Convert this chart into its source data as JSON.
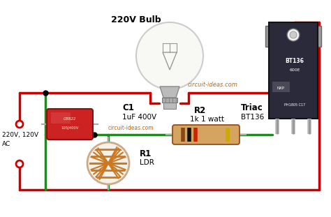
{
  "bg_color": "#ffffff",
  "wire_red": "#cc0000",
  "wire_green": "#228822",
  "label_bulb": "220V Bulb",
  "label_c1": "C1",
  "label_c1_val": "1uF 400V",
  "label_c1_brand": "circuit-ideas.com",
  "label_r2": "R2",
  "label_r2_val": "1k 1 watt",
  "label_r1": "R1",
  "label_r1_val": "LDR",
  "label_triac": "Triac",
  "label_triac_val": "BT136",
  "label_ac": "220V, 120V\nAC",
  "label_website": "circuit-ideas.com",
  "website_color": "#cc6600",
  "cap_color": "#cc2222",
  "cap_text1": "CBB22",
  "cap_text2": "105J400V",
  "triac_dark": "#2a2a3a",
  "triac_metal": "#9a9a9a",
  "triac_text1": "BT136",
  "triac_text2": "600E",
  "triac_text3": "NXP",
  "triac_text4": "PH1805 C17",
  "res_body": "#d4a460",
  "res_border": "#8B4513",
  "band1": "#8B4513",
  "band2": "#000000",
  "band3": "#cc2200",
  "band4": "#ccaa00",
  "ldr_body": "#ffffff",
  "ldr_pattern": "#cc7722",
  "bulb_glass": "#f5f5f0",
  "bulb_neck": "#aaaaaa"
}
